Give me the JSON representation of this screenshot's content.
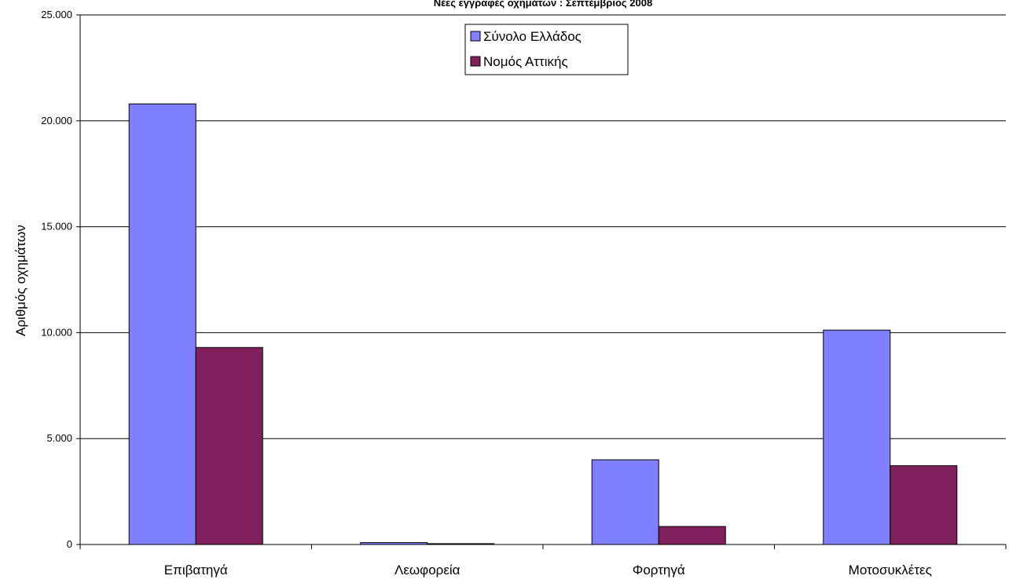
{
  "chart_data": {
    "type": "bar",
    "title": "Νέες εγγραφές οχημάτων : Σεπτέμβριος 2008",
    "xlabel": "",
    "ylabel": "Αριθμός οχημάτων",
    "categories": [
      "Επιβατηγά",
      "Λεωφορεία",
      "Φορτηγά",
      "Μοτοσυκλέτες"
    ],
    "series": [
      {
        "name": "Σύνολο Ελλάδος",
        "color": "#8080ff",
        "values": [
          20800,
          90,
          4000,
          10120
        ]
      },
      {
        "name": "Νομός Αττικής",
        "color": "#80205c",
        "values": [
          9300,
          40,
          850,
          3720
        ]
      }
    ],
    "ylim": [
      0,
      25000
    ],
    "yticks": [
      0,
      5000,
      10000,
      15000,
      20000,
      25000
    ],
    "ytick_labels": [
      "0",
      "5.000",
      "10.000",
      "15.000",
      "20.000",
      "25.000"
    ],
    "grid": true,
    "legend_position": "top-center"
  }
}
